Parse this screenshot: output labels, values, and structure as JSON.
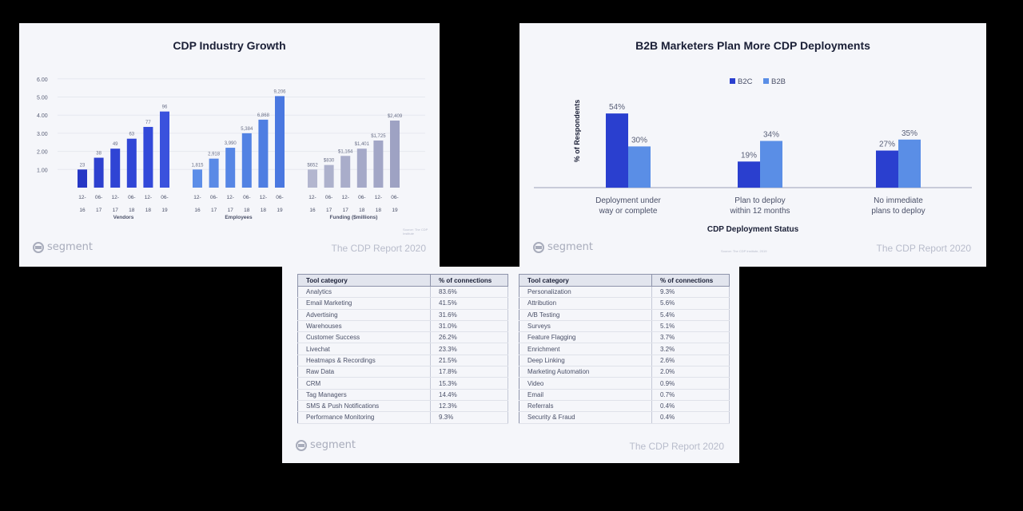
{
  "brand_name": "segment",
  "report_name": "The CDP Report 2020",
  "slide1": {
    "title": "CDP Industry Growth",
    "source": "Source: The CDP Institute",
    "y_ticks": [
      "6.00",
      "5.00",
      "4.00",
      "3.00",
      "2.00",
      "1.00"
    ]
  },
  "slide2": {
    "title": "B2B Marketers Plan More CDP Deployments",
    "source": "Source: The CDP Institute, 2019"
  },
  "chart_data": [
    {
      "type": "bar",
      "title": "CDP Industry Growth",
      "ylim": [
        0,
        6
      ],
      "panels": [
        {
          "xlabel": "Vendors",
          "categories": [
            "12-16",
            "06-17",
            "12-17",
            "06-18",
            "12-18",
            "06-19"
          ],
          "values": [
            1.0,
            1.65,
            2.15,
            2.7,
            3.35,
            4.2
          ],
          "labels": [
            "23",
            "38",
            "49",
            "63",
            "77",
            "96"
          ],
          "colors": [
            "#2637c5",
            "#2d40cf",
            "#2f44d4",
            "#3046d6",
            "#3249d9",
            "#3a52dd"
          ]
        },
        {
          "xlabel": "Employees",
          "categories": [
            "12-16",
            "06-17",
            "12-17",
            "06-18",
            "12-18",
            "06-19"
          ],
          "values": [
            1.0,
            1.6,
            2.2,
            3.0,
            3.75,
            5.05
          ],
          "labels": [
            "1,815",
            "2,918",
            "3,990",
            "5,384",
            "6,868",
            "9,206"
          ],
          "colors": [
            "#5d8ee8",
            "#5a8ae6",
            "#5686e5",
            "#5282e3",
            "#4f7ee2",
            "#4a78e0"
          ]
        },
        {
          "xlabel": "Funding ($millions)",
          "categories": [
            "12-16",
            "06-17",
            "12-17",
            "06-18",
            "12-18",
            "06-19"
          ],
          "values": [
            1.0,
            1.25,
            1.75,
            2.15,
            2.6,
            3.7
          ],
          "labels": [
            "$652",
            "$830",
            "$1,164",
            "$1,401",
            "$1,725",
            "$2,409"
          ],
          "colors": [
            "#b3b6cf",
            "#adb1cc",
            "#a9adca",
            "#a5a9c8",
            "#a2a6c6",
            "#9ea2c3"
          ]
        }
      ]
    },
    {
      "type": "bar",
      "title": "B2B Marketers Plan More CDP Deployments",
      "xlabel": "CDP Deployment Status",
      "ylabel": "% of Respondents",
      "legend_position": "top-center",
      "categories": [
        "Deployment under way or complete",
        "Plan to deploy within 12 months",
        "No immediate plans to deploy"
      ],
      "category_lines": [
        [
          "Deployment under",
          "way or complete"
        ],
        [
          "Plan to deploy",
          "within 12 months"
        ],
        [
          "No immediate",
          "plans to deploy"
        ]
      ],
      "series": [
        {
          "name": "B2C",
          "values": [
            54,
            19,
            27
          ],
          "labels": [
            "54%",
            "19%",
            "27%"
          ],
          "color": "#2a3fcf"
        },
        {
          "name": "B2B",
          "values": [
            30,
            34,
            35
          ],
          "labels": [
            "30%",
            "34%",
            "35%"
          ],
          "color": "#5a8ee6"
        }
      ]
    },
    {
      "type": "table",
      "columns": [
        "Tool category",
        "% of connections"
      ],
      "tables": [
        {
          "rows": [
            [
              "Analytics",
              "83.6%"
            ],
            [
              "Email Marketing",
              "41.5%"
            ],
            [
              "Advertising",
              "31.6%"
            ],
            [
              "Warehouses",
              "31.0%"
            ],
            [
              "Customer Success",
              "26.2%"
            ],
            [
              "Livechat",
              "23.3%"
            ],
            [
              "Heatmaps & Recordings",
              "21.5%"
            ],
            [
              "Raw Data",
              "17.8%"
            ],
            [
              "CRM",
              "15.3%"
            ],
            [
              "Tag Managers",
              "14.4%"
            ],
            [
              "SMS & Push Notifications",
              "12.3%"
            ],
            [
              "Performance Monitoring",
              "9.3%"
            ]
          ]
        },
        {
          "rows": [
            [
              "Personalization",
              "9.3%"
            ],
            [
              "Attribution",
              "5.6%"
            ],
            [
              "A/B Testing",
              "5.4%"
            ],
            [
              "Surveys",
              "5.1%"
            ],
            [
              "Feature Flagging",
              "3.7%"
            ],
            [
              "Enrichment",
              "3.2%"
            ],
            [
              "Deep Linking",
              "2.6%"
            ],
            [
              "Marketing Automation",
              "2.0%"
            ],
            [
              "Video",
              "0.9%"
            ],
            [
              "Email",
              "0.7%"
            ],
            [
              "Referrals",
              "0.4%"
            ],
            [
              "Security & Fraud",
              "0.4%"
            ]
          ]
        }
      ]
    }
  ]
}
